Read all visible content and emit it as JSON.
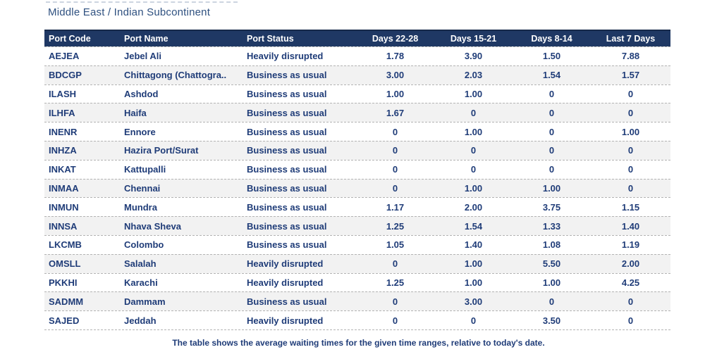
{
  "page": {
    "title": "Middle East / Indian Subcontinent",
    "footnote": "The table shows the average waiting times for the given time ranges, relative to today's date."
  },
  "chart_data": {
    "type": "table",
    "title": "Middle East / Indian Subcontinent",
    "columns": [
      "Port Code",
      "Port Name",
      "Port Status",
      "Days 22-28",
      "Days 15-21",
      "Days 8-14",
      "Last 7 Days"
    ],
    "column_alignments": [
      "left",
      "left",
      "left",
      "center",
      "center",
      "center",
      "center"
    ],
    "rows": [
      [
        "AEJEA",
        "Jebel Ali",
        "Heavily disrupted",
        "1.78",
        "3.90",
        "1.50",
        "7.88"
      ],
      [
        "BDCGP",
        "Chittagong (Chattogra..",
        "Business as usual",
        "3.00",
        "2.03",
        "1.54",
        "1.57"
      ],
      [
        "ILASH",
        "Ashdod",
        "Business as usual",
        "1.00",
        "1.00",
        "0",
        "0"
      ],
      [
        "ILHFA",
        "Haifa",
        "Business as usual",
        "1.67",
        "0",
        "0",
        "0"
      ],
      [
        "INENR",
        "Ennore",
        "Business as usual",
        "0",
        "1.00",
        "0",
        "1.00"
      ],
      [
        "INHZA",
        "Hazira Port/Surat",
        "Business as usual",
        "0",
        "0",
        "0",
        "0"
      ],
      [
        "INKAT",
        "Kattupalli",
        "Business as usual",
        "0",
        "0",
        "0",
        "0"
      ],
      [
        "INMAA",
        "Chennai",
        "Business as usual",
        "0",
        "1.00",
        "1.00",
        "0"
      ],
      [
        "INMUN",
        "Mundra",
        "Business as usual",
        "1.17",
        "2.00",
        "3.75",
        "1.15"
      ],
      [
        "INNSA",
        "Nhava Sheva",
        "Business as usual",
        "1.25",
        "1.54",
        "1.33",
        "1.40"
      ],
      [
        "LKCMB",
        "Colombo",
        "Business as usual",
        "1.05",
        "1.40",
        "1.08",
        "1.19"
      ],
      [
        "OMSLL",
        "Salalah",
        "Heavily disrupted",
        "0",
        "1.00",
        "5.50",
        "2.00"
      ],
      [
        "PKKHI",
        "Karachi",
        "Heavily disrupted",
        "1.25",
        "1.00",
        "1.00",
        "4.25"
      ],
      [
        "SADMM",
        "Dammam",
        "Business as usual",
        "0",
        "3.00",
        "0",
        "0"
      ],
      [
        "SAJED",
        "Jeddah",
        "Heavily disrupted",
        "0",
        "0",
        "3.50",
        "0"
      ]
    ]
  },
  "colors": {
    "header_bg": "#1f3864",
    "header_text": "#ffffff",
    "cell_text": "#1f3c78",
    "title_text": "#2f5180",
    "stripe_bg": "#f2f2f2",
    "separator": "#b3b3b3"
  }
}
